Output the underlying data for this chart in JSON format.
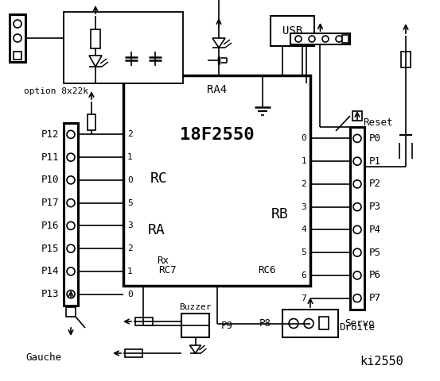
{
  "bg_color": "#ffffff",
  "line_color": "#000000",
  "title": "ki2550",
  "ic_label": "18F2550",
  "ic_sublabel": "RA4",
  "left_labels": [
    "P12",
    "P11",
    "P10",
    "P17",
    "P16",
    "P15",
    "P14",
    "P13"
  ],
  "right_labels": [
    "P0",
    "P1",
    "P2",
    "P3",
    "P4",
    "P5",
    "P6",
    "P7"
  ],
  "rc_pins": [
    "2",
    "1",
    "0",
    "5",
    "3",
    "2",
    "1",
    "0"
  ],
  "rb_pins": [
    "0",
    "1",
    "2",
    "3",
    "4",
    "5",
    "6",
    "7"
  ],
  "option_text": "option 8x22k",
  "gauche_text": "Gauche",
  "droite_text": "Droite",
  "servo_text": "Servo",
  "buzzer_text": "Buzzer",
  "usb_text": "USB",
  "reset_text": "Reset",
  "p8_text": "P8",
  "p9_text": "P9",
  "rc_text": "RC",
  "ra_text": "RA",
  "rb_text": "RB",
  "rx_text": "Rx",
  "rc7_text": "RC7",
  "rc6_text": "RC6"
}
